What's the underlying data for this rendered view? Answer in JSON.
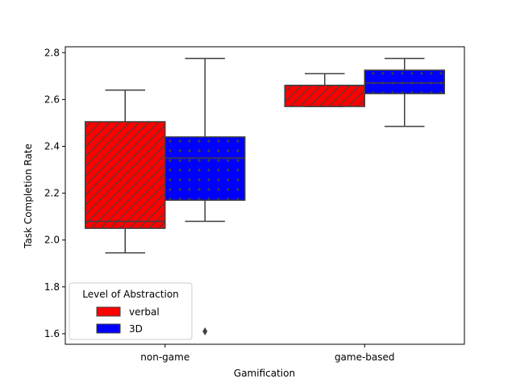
{
  "chart_data": {
    "type": "box",
    "xlabel": "Gamification",
    "ylabel": "Task Completion Rate",
    "categories": [
      "non-game",
      "game-based"
    ],
    "ylim": [
      1.555,
      2.825
    ],
    "yticks": [
      1.6,
      1.8,
      2.0,
      2.2,
      2.4,
      2.6,
      2.8
    ],
    "ytick_labels": [
      "1.6",
      "1.8",
      "2.0",
      "2.2",
      "2.4",
      "2.6",
      "2.8"
    ],
    "legend": {
      "title": "Level of Abstraction",
      "placement": "lower-left"
    },
    "series": [
      {
        "name": "verbal",
        "color": "#ff0000",
        "hatch": "diagonal",
        "boxes": [
          {
            "whislo": 1.945,
            "q1": 2.05,
            "med": 2.08,
            "q3": 2.505,
            "whishi": 2.64,
            "fliers": []
          },
          {
            "whislo": 2.57,
            "q1": 2.57,
            "med": 2.66,
            "q3": 2.66,
            "whishi": 2.71,
            "fliers": []
          }
        ]
      },
      {
        "name": "3D",
        "color": "#0000ff",
        "hatch": "dots",
        "boxes": [
          {
            "whislo": 2.08,
            "q1": 2.17,
            "med": 2.35,
            "q3": 2.44,
            "whishi": 2.775,
            "fliers": [
              1.61
            ]
          },
          {
            "whislo": 2.485,
            "q1": 2.625,
            "med": 2.67,
            "q3": 2.725,
            "whishi": 2.775,
            "fliers": []
          }
        ]
      }
    ]
  }
}
